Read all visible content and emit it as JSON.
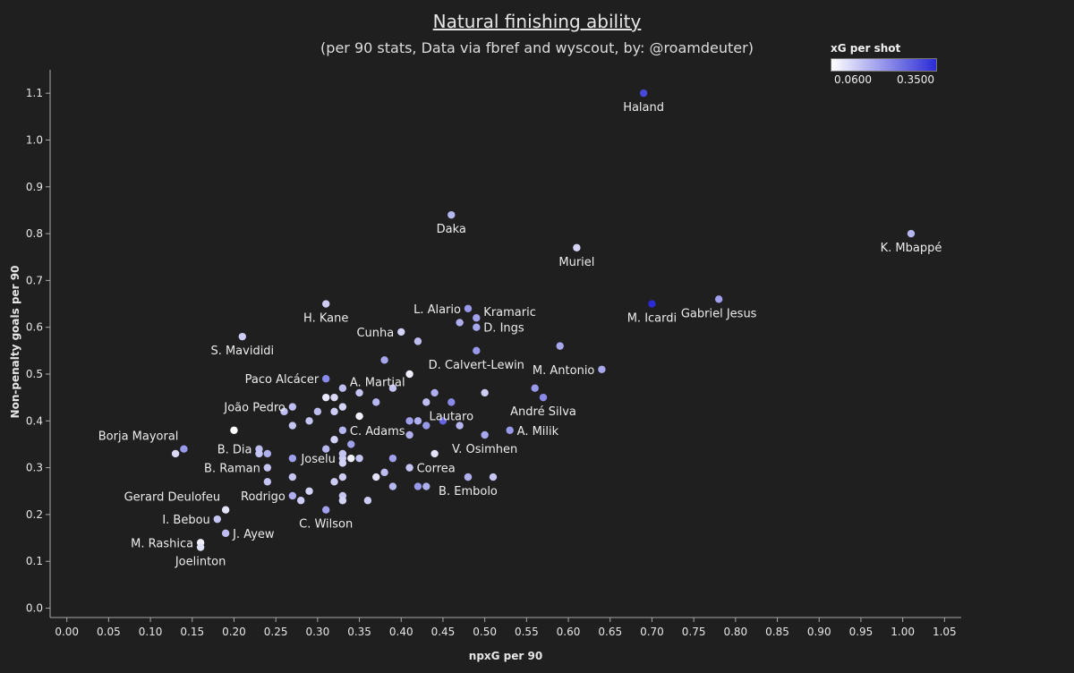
{
  "title": "Natural finishing ability",
  "subtitle": "(per 90 stats, Data via fbref and wyscout, by: @roamdeuter)",
  "legend": {
    "title": "xG per shot",
    "min_label": "0.0600",
    "max_label": "0.3500",
    "min_color": "#ffffff",
    "max_color": "#2b2bd6"
  },
  "colors": {
    "background": "#1f1f1f",
    "text": "#e6e6e6",
    "axis": "#aaaaaa"
  },
  "chart_data": {
    "type": "scatter",
    "xlabel": "npxG per 90",
    "ylabel": "Non-penalty goals per 90",
    "xlim": [
      -0.02,
      1.07
    ],
    "ylim": [
      -0.02,
      1.15
    ],
    "x_ticks": [
      "0.00",
      "0.05",
      "0.10",
      "0.15",
      "0.20",
      "0.25",
      "0.30",
      "0.35",
      "0.40",
      "0.45",
      "0.50",
      "0.55",
      "0.60",
      "0.65",
      "0.70",
      "0.75",
      "0.80",
      "0.85",
      "0.90",
      "0.95",
      "1.00",
      "1.05"
    ],
    "y_ticks": [
      "0.0",
      "0.1",
      "0.2",
      "0.3",
      "0.4",
      "0.5",
      "0.6",
      "0.7",
      "0.8",
      "0.9",
      "1.0",
      "1.1"
    ],
    "color_scale": {
      "min": 0.06,
      "max": 0.35
    },
    "points": [
      {
        "label": "Haland",
        "x": 0.69,
        "y": 1.1,
        "c": 0.31,
        "lpos": "below"
      },
      {
        "label": "K. Mbappé",
        "x": 1.01,
        "y": 0.8,
        "c": 0.16,
        "lpos": "below"
      },
      {
        "label": "Daka",
        "x": 0.46,
        "y": 0.84,
        "c": 0.16,
        "lpos": "below"
      },
      {
        "label": "Muriel",
        "x": 0.61,
        "y": 0.77,
        "c": 0.12,
        "lpos": "below"
      },
      {
        "label": "M. Icardi",
        "x": 0.7,
        "y": 0.65,
        "c": 0.35,
        "lpos": "below"
      },
      {
        "label": "Gabriel Jesus",
        "x": 0.78,
        "y": 0.66,
        "c": 0.19,
        "lpos": "below"
      },
      {
        "label": "H. Kane",
        "x": 0.31,
        "y": 0.65,
        "c": 0.13,
        "lpos": "below"
      },
      {
        "label": "L. Alario",
        "x": 0.48,
        "y": 0.64,
        "c": 0.2,
        "lpos": "left"
      },
      {
        "label": "Kramaric",
        "x": 0.49,
        "y": 0.62,
        "c": 0.19,
        "lpos": "upright"
      },
      {
        "label": "D. Ings",
        "x": 0.49,
        "y": 0.6,
        "c": 0.18,
        "lpos": "right"
      },
      {
        "label": "Cunha",
        "x": 0.4,
        "y": 0.59,
        "c": 0.12,
        "lpos": "left"
      },
      {
        "label": "S. Mavididi",
        "x": 0.21,
        "y": 0.58,
        "c": 0.13,
        "lpos": "below"
      },
      {
        "label": "D. Calvert-Lewin",
        "x": 0.49,
        "y": 0.55,
        "c": 0.2,
        "lpos": "below"
      },
      {
        "label": "M. Antonio",
        "x": 0.64,
        "y": 0.51,
        "c": 0.18,
        "lpos": "left"
      },
      {
        "label": "Paco Alcácer",
        "x": 0.31,
        "y": 0.49,
        "c": 0.22,
        "lpos": "left"
      },
      {
        "label": "A. Martial",
        "x": 0.33,
        "y": 0.47,
        "c": 0.15,
        "lpos": "upright"
      },
      {
        "label": "André Silva",
        "x": 0.57,
        "y": 0.45,
        "c": 0.22,
        "lpos": "below"
      },
      {
        "label": "Lautaro",
        "x": 0.46,
        "y": 0.44,
        "c": 0.22,
        "lpos": "below"
      },
      {
        "label": "João Pedro",
        "x": 0.27,
        "y": 0.43,
        "c": 0.15,
        "lpos": "left"
      },
      {
        "label": "Borja Mayoral",
        "x": 0.14,
        "y": 0.34,
        "c": 0.2,
        "lpos": "upleft"
      },
      {
        "label": "A. Milik",
        "x": 0.53,
        "y": 0.38,
        "c": 0.2,
        "lpos": "right"
      },
      {
        "label": "C. Adams",
        "x": 0.33,
        "y": 0.38,
        "c": 0.16,
        "lpos": "right"
      },
      {
        "label": "V. Osimhen",
        "x": 0.5,
        "y": 0.37,
        "c": 0.18,
        "lpos": "below"
      },
      {
        "label": "B. Dia",
        "x": 0.23,
        "y": 0.34,
        "c": 0.15,
        "lpos": "left"
      },
      {
        "label": "Joselu",
        "x": 0.33,
        "y": 0.32,
        "c": 0.13,
        "lpos": "left"
      },
      {
        "label": "B. Raman",
        "x": 0.24,
        "y": 0.3,
        "c": 0.14,
        "lpos": "left"
      },
      {
        "label": "Correa",
        "x": 0.41,
        "y": 0.3,
        "c": 0.14,
        "lpos": "right"
      },
      {
        "label": "B. Embolo",
        "x": 0.48,
        "y": 0.28,
        "c": 0.16,
        "lpos": "below"
      },
      {
        "label": "Gerard Deulofeu",
        "x": 0.19,
        "y": 0.21,
        "c": 0.1,
        "lpos": "upleft"
      },
      {
        "label": "Rodrigo",
        "x": 0.27,
        "y": 0.24,
        "c": 0.17,
        "lpos": "left"
      },
      {
        "label": "C. Wilson",
        "x": 0.31,
        "y": 0.21,
        "c": 0.19,
        "lpos": "below"
      },
      {
        "label": "I. Bebou",
        "x": 0.18,
        "y": 0.19,
        "c": 0.14,
        "lpos": "left"
      },
      {
        "label": "J. Ayew",
        "x": 0.19,
        "y": 0.16,
        "c": 0.15,
        "lpos": "right"
      },
      {
        "label": "M. Rashica",
        "x": 0.16,
        "y": 0.14,
        "c": 0.08,
        "lpos": "left"
      },
      {
        "label": "Joelinton",
        "x": 0.16,
        "y": 0.13,
        "c": 0.1,
        "lpos": "below"
      },
      {
        "label": "",
        "x": 0.13,
        "y": 0.33,
        "c": 0.11
      },
      {
        "label": "",
        "x": 0.2,
        "y": 0.38,
        "c": 0.06
      },
      {
        "label": "",
        "x": 0.23,
        "y": 0.33,
        "c": 0.14
      },
      {
        "label": "",
        "x": 0.24,
        "y": 0.33,
        "c": 0.17
      },
      {
        "label": "",
        "x": 0.24,
        "y": 0.27,
        "c": 0.14
      },
      {
        "label": "",
        "x": 0.26,
        "y": 0.42,
        "c": 0.15
      },
      {
        "label": "",
        "x": 0.27,
        "y": 0.39,
        "c": 0.14
      },
      {
        "label": "",
        "x": 0.27,
        "y": 0.32,
        "c": 0.19
      },
      {
        "label": "",
        "x": 0.27,
        "y": 0.28,
        "c": 0.14
      },
      {
        "label": "",
        "x": 0.28,
        "y": 0.23,
        "c": 0.13
      },
      {
        "label": "",
        "x": 0.29,
        "y": 0.4,
        "c": 0.14
      },
      {
        "label": "",
        "x": 0.29,
        "y": 0.25,
        "c": 0.12
      },
      {
        "label": "",
        "x": 0.3,
        "y": 0.42,
        "c": 0.15
      },
      {
        "label": "",
        "x": 0.31,
        "y": 0.45,
        "c": 0.09
      },
      {
        "label": "",
        "x": 0.31,
        "y": 0.34,
        "c": 0.16
      },
      {
        "label": "",
        "x": 0.32,
        "y": 0.45,
        "c": 0.11
      },
      {
        "label": "",
        "x": 0.32,
        "y": 0.42,
        "c": 0.13
      },
      {
        "label": "",
        "x": 0.32,
        "y": 0.36,
        "c": 0.12
      },
      {
        "label": "",
        "x": 0.32,
        "y": 0.27,
        "c": 0.13
      },
      {
        "label": "",
        "x": 0.33,
        "y": 0.43,
        "c": 0.12
      },
      {
        "label": "",
        "x": 0.33,
        "y": 0.33,
        "c": 0.14
      },
      {
        "label": "",
        "x": 0.33,
        "y": 0.31,
        "c": 0.12
      },
      {
        "label": "",
        "x": 0.33,
        "y": 0.28,
        "c": 0.13
      },
      {
        "label": "",
        "x": 0.33,
        "y": 0.24,
        "c": 0.14
      },
      {
        "label": "",
        "x": 0.33,
        "y": 0.23,
        "c": 0.12
      },
      {
        "label": "",
        "x": 0.34,
        "y": 0.35,
        "c": 0.19
      },
      {
        "label": "",
        "x": 0.34,
        "y": 0.32,
        "c": 0.08
      },
      {
        "label": "",
        "x": 0.35,
        "y": 0.46,
        "c": 0.14
      },
      {
        "label": "",
        "x": 0.35,
        "y": 0.41,
        "c": 0.08
      },
      {
        "label": "",
        "x": 0.35,
        "y": 0.32,
        "c": 0.14
      },
      {
        "label": "",
        "x": 0.36,
        "y": 0.23,
        "c": 0.13
      },
      {
        "label": "",
        "x": 0.37,
        "y": 0.44,
        "c": 0.16
      },
      {
        "label": "",
        "x": 0.37,
        "y": 0.28,
        "c": 0.1
      },
      {
        "label": "",
        "x": 0.38,
        "y": 0.53,
        "c": 0.18
      },
      {
        "label": "",
        "x": 0.38,
        "y": 0.29,
        "c": 0.15
      },
      {
        "label": "",
        "x": 0.39,
        "y": 0.47,
        "c": 0.14
      },
      {
        "label": "",
        "x": 0.39,
        "y": 0.32,
        "c": 0.19
      },
      {
        "label": "",
        "x": 0.39,
        "y": 0.26,
        "c": 0.16
      },
      {
        "label": "",
        "x": 0.41,
        "y": 0.5,
        "c": 0.08
      },
      {
        "label": "",
        "x": 0.41,
        "y": 0.4,
        "c": 0.19
      },
      {
        "label": "",
        "x": 0.41,
        "y": 0.37,
        "c": 0.17
      },
      {
        "label": "",
        "x": 0.42,
        "y": 0.57,
        "c": 0.15
      },
      {
        "label": "",
        "x": 0.42,
        "y": 0.4,
        "c": 0.17
      },
      {
        "label": "",
        "x": 0.42,
        "y": 0.26,
        "c": 0.2
      },
      {
        "label": "",
        "x": 0.43,
        "y": 0.44,
        "c": 0.15
      },
      {
        "label": "",
        "x": 0.43,
        "y": 0.39,
        "c": 0.2
      },
      {
        "label": "",
        "x": 0.43,
        "y": 0.26,
        "c": 0.17
      },
      {
        "label": "",
        "x": 0.44,
        "y": 0.46,
        "c": 0.17
      },
      {
        "label": "",
        "x": 0.44,
        "y": 0.33,
        "c": 0.1
      },
      {
        "label": "",
        "x": 0.45,
        "y": 0.4,
        "c": 0.27
      },
      {
        "label": "",
        "x": 0.47,
        "y": 0.61,
        "c": 0.17
      },
      {
        "label": "",
        "x": 0.47,
        "y": 0.39,
        "c": 0.16
      },
      {
        "label": "",
        "x": 0.48,
        "y": 0.28,
        "c": 0.17
      },
      {
        "label": "",
        "x": 0.5,
        "y": 0.46,
        "c": 0.13
      },
      {
        "label": "",
        "x": 0.51,
        "y": 0.28,
        "c": 0.14
      },
      {
        "label": "",
        "x": 0.56,
        "y": 0.47,
        "c": 0.2
      },
      {
        "label": "",
        "x": 0.59,
        "y": 0.56,
        "c": 0.18
      }
    ]
  }
}
